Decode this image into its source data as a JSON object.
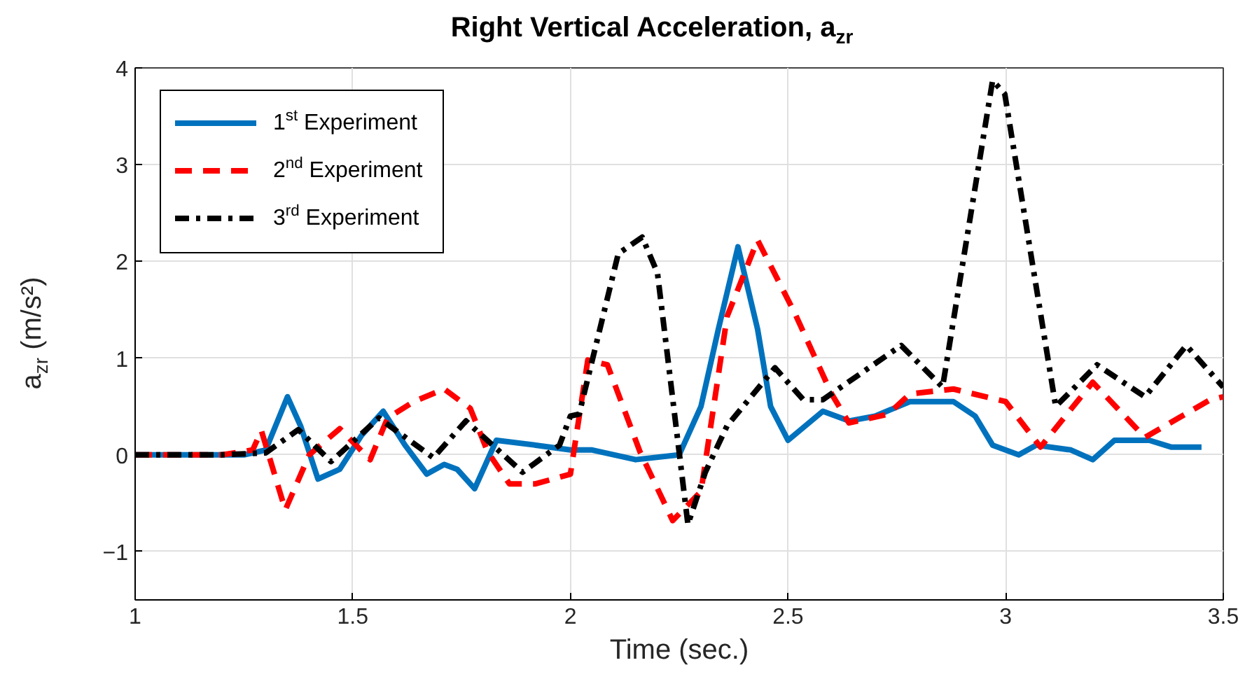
{
  "chart_data": {
    "type": "line",
    "title": "Right Vertical Acceleration, a$_{zr}$",
    "xlabel": "Time (sec.)",
    "ylabel": "a$_{zr}$ (m/s²)",
    "xlim": [
      1,
      3.5
    ],
    "ylim": [
      -1.5,
      4
    ],
    "xticks": [
      1,
      1.5,
      2,
      2.5,
      3,
      3.5
    ],
    "yticks": [
      -1,
      0,
      1,
      2,
      3,
      4
    ],
    "grid": true,
    "legend": "top left",
    "series": [
      {
        "name": "1$^{st}$ Experiment",
        "color": "#0072bd",
        "line_style": "solid",
        "x": [
          1,
          1.1,
          1.2,
          1.25,
          1.3,
          1.35,
          1.38,
          1.42,
          1.47,
          1.52,
          1.57,
          1.62,
          1.67,
          1.71,
          1.74,
          1.78,
          1.83,
          1.92,
          2.0,
          2.05,
          2.15,
          2.25,
          2.3,
          2.34,
          2.385,
          2.43,
          2.46,
          2.5,
          2.54,
          2.58,
          2.64,
          2.7,
          2.78,
          2.88,
          2.93,
          2.97,
          3.03,
          3.07,
          3.15,
          3.2,
          3.25,
          3.33,
          3.38,
          3.45
        ],
        "values": [
          0,
          0,
          0,
          0,
          0.05,
          0.6,
          0.3,
          -0.25,
          -0.15,
          0.2,
          0.45,
          0.1,
          -0.2,
          -0.1,
          -0.15,
          -0.35,
          0.15,
          0.1,
          0.05,
          0.05,
          -0.05,
          0,
          0.5,
          1.3,
          2.15,
          1.3,
          0.5,
          0.15,
          0.3,
          0.45,
          0.35,
          0.4,
          0.55,
          0.55,
          0.4,
          0.1,
          0,
          0.1,
          0.05,
          -0.05,
          0.15,
          0.15,
          0.08,
          0.08
        ]
      },
      {
        "name": "2$^{nd}$ Experiment",
        "color": "#ff0000",
        "line_style": "dashed",
        "x": [
          1,
          1.1,
          1.2,
          1.27,
          1.29,
          1.345,
          1.4,
          1.47,
          1.54,
          1.58,
          1.64,
          1.71,
          1.77,
          1.81,
          1.86,
          1.92,
          2.0,
          2.04,
          2.085,
          2.16,
          2.235,
          2.3,
          2.36,
          2.43,
          2.515,
          2.6,
          2.64,
          2.73,
          2.78,
          2.88,
          3.0,
          3.08,
          3.2,
          3.32,
          3.47,
          3.5
        ],
        "values": [
          0,
          0,
          0,
          0.05,
          0.25,
          -0.57,
          0,
          0.27,
          -0.05,
          0.38,
          0.55,
          0.68,
          0.48,
          0.03,
          -0.3,
          -0.3,
          -0.2,
          0.98,
          0.93,
          0.03,
          -0.68,
          -0.38,
          1.43,
          2.22,
          1.47,
          0.63,
          0.33,
          0.42,
          0.63,
          0.68,
          0.55,
          0.08,
          0.75,
          0.18,
          0.57,
          0.6
        ]
      },
      {
        "name": "3$^{rd}$ Experiment",
        "color": "#000000",
        "line_style": "dashdot",
        "x": [
          1,
          1.1,
          1.2,
          1.3,
          1.375,
          1.45,
          1.56,
          1.685,
          1.76,
          1.89,
          1.975,
          2.0,
          2.02,
          2.11,
          2.165,
          2.2,
          2.27,
          2.31,
          2.36,
          2.47,
          2.535,
          2.58,
          2.76,
          2.855,
          2.97,
          2.998,
          3.115,
          3.21,
          3.32,
          3.415,
          3.5
        ],
        "values": [
          0,
          0,
          0,
          0.02,
          0.26,
          -0.07,
          0.38,
          -0.03,
          0.35,
          -0.18,
          0.1,
          0.4,
          0.42,
          2.08,
          2.25,
          1.88,
          -0.72,
          -0.18,
          0.3,
          0.9,
          0.57,
          0.57,
          1.13,
          0.7,
          3.87,
          3.73,
          0.5,
          0.93,
          0.6,
          1.13,
          0.7
        ]
      }
    ]
  }
}
